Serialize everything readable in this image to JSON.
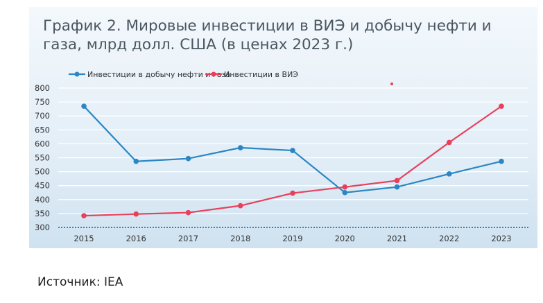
{
  "chart_data": {
    "type": "line",
    "title": "График 2. Мировые инвестиции в ВИЭ и добычу нефти и газа, млрд долл. США (в ценах 2023 г.)",
    "x": [
      "2015",
      "2016",
      "2017",
      "2018",
      "2019",
      "2020",
      "2021",
      "2022",
      "2023"
    ],
    "yticks": [
      300,
      350,
      400,
      450,
      500,
      550,
      600,
      650,
      700,
      750,
      800
    ],
    "ylim": [
      300,
      800
    ],
    "grid": true,
    "legend_position": "top",
    "series": [
      {
        "name": "Инвестиции в добычу нефти и газа",
        "color": "#2a86c4",
        "values": [
          735,
          537,
          547,
          586,
          576,
          425,
          445,
          492,
          537
        ]
      },
      {
        "name": "Инвестиции в ВИЭ",
        "color": "#e8405a",
        "values": [
          342,
          348,
          353,
          378,
          423,
          445,
          468,
          605,
          735
        ]
      }
    ]
  },
  "source": "Источник: IEA"
}
